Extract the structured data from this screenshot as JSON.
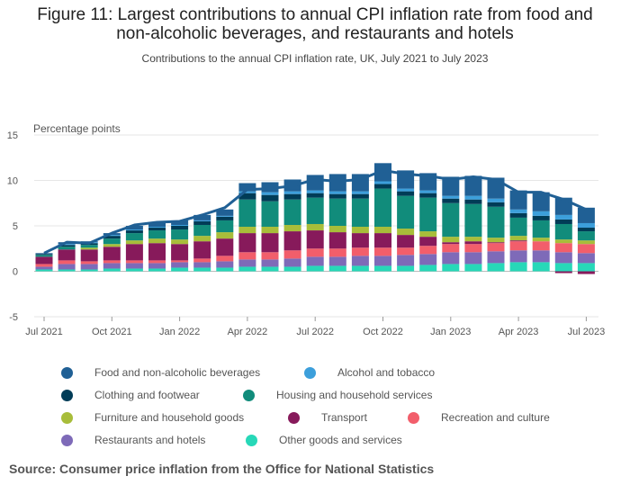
{
  "header": {
    "title_line1": "Figure 11: Largest contributions to annual CPI inflation rate from food and",
    "title_line2": "non-alcoholic beverages, and restaurants and hotels",
    "subtitle": "Contributions to the annual CPI inflation rate, UK, July 2021 to July 2023"
  },
  "source": "Source: Consumer price inflation from the Office for National Statistics",
  "chart_data": {
    "type": "bar",
    "stacked": true,
    "ylabel": "Percentage points",
    "ylim": [
      -5,
      15
    ],
    "yticks": [
      "15",
      "10",
      "5",
      "0",
      "-5"
    ],
    "grid": true,
    "legend_position": "bottom",
    "categories": [
      "Jul 2021",
      "Aug 2021",
      "Sep 2021",
      "Oct 2021",
      "Nov 2021",
      "Dec 2021",
      "Jan 2022",
      "Feb 2022",
      "Mar 2022",
      "Apr 2022",
      "May 2022",
      "Jun 2022",
      "Jul 2022",
      "Aug 2022",
      "Sep 2022",
      "Oct 2022",
      "Nov 2022",
      "Dec 2022",
      "Jan 2023",
      "Feb 2023",
      "Mar 2023",
      "Apr 2023",
      "May 2023",
      "Jun 2023",
      "Jul 2023"
    ],
    "xtick_labels": [
      {
        "index": 0,
        "label": "Jul 2021"
      },
      {
        "index": 3,
        "label": "Oct 2021"
      },
      {
        "index": 6,
        "label": "Jan 2022"
      },
      {
        "index": 9,
        "label": "Apr 2022"
      },
      {
        "index": 12,
        "label": "Jul 2022"
      },
      {
        "index": 15,
        "label": "Oct 2022"
      },
      {
        "index": 18,
        "label": "Jan 2023"
      },
      {
        "index": 21,
        "label": "Apr 2023"
      },
      {
        "index": 24,
        "label": "Jul 2023"
      }
    ],
    "series": [
      {
        "name": "Other goods and services",
        "color": "#27d8b8",
        "values": [
          0.2,
          0.2,
          0.2,
          0.3,
          0.3,
          0.3,
          0.4,
          0.4,
          0.4,
          0.5,
          0.5,
          0.5,
          0.6,
          0.6,
          0.6,
          0.6,
          0.6,
          0.7,
          0.8,
          0.8,
          0.9,
          1.0,
          1.0,
          0.9,
          0.9
        ]
      },
      {
        "name": "Restaurants and hotels",
        "color": "#7e6ab8",
        "values": [
          0.3,
          0.6,
          0.6,
          0.6,
          0.6,
          0.6,
          0.6,
          0.6,
          0.7,
          0.8,
          0.8,
          0.9,
          1.0,
          1.0,
          1.1,
          1.1,
          1.2,
          1.2,
          1.3,
          1.3,
          1.3,
          1.3,
          1.3,
          1.2,
          1.1
        ]
      },
      {
        "name": "Recreation and culture",
        "color": "#f25e6b",
        "values": [
          0.3,
          0.4,
          0.3,
          0.3,
          0.3,
          0.3,
          0.2,
          0.4,
          0.6,
          0.8,
          0.8,
          0.9,
          0.9,
          0.9,
          0.9,
          0.9,
          0.8,
          0.9,
          0.9,
          0.9,
          0.9,
          1.0,
          1.0,
          1.0,
          1.0
        ]
      },
      {
        "name": "Transport",
        "color": "#871a5b",
        "values": [
          0.8,
          1.2,
          1.3,
          1.5,
          1.8,
          1.9,
          1.8,
          1.9,
          1.9,
          2.1,
          2.1,
          2.1,
          2.0,
          1.8,
          1.6,
          1.6,
          1.4,
          1.0,
          0.2,
          0.3,
          0.1,
          0.1,
          0.0,
          -0.2,
          -0.3
        ]
      },
      {
        "name": "Furniture and household goods",
        "color": "#a8bd3a",
        "values": [
          0.0,
          0.0,
          0.2,
          0.3,
          0.4,
          0.5,
          0.5,
          0.6,
          0.7,
          0.7,
          0.7,
          0.7,
          0.7,
          0.7,
          0.7,
          0.7,
          0.7,
          0.6,
          0.6,
          0.5,
          0.5,
          0.5,
          0.4,
          0.4,
          0.4
        ]
      },
      {
        "name": "Housing and household services",
        "color": "#118c7b",
        "values": [
          0.2,
          0.3,
          0.3,
          0.6,
          0.8,
          0.9,
          1.1,
          1.2,
          1.3,
          3.0,
          2.8,
          2.8,
          2.9,
          3.0,
          3.1,
          4.2,
          3.6,
          3.7,
          3.7,
          3.6,
          3.4,
          2.0,
          1.9,
          1.7,
          1.0
        ]
      },
      {
        "name": "Clothing and footwear",
        "color": "#003c57",
        "values": [
          0.1,
          0.2,
          0.2,
          0.3,
          0.3,
          0.3,
          0.4,
          0.4,
          0.4,
          0.7,
          0.7,
          0.6,
          0.5,
          0.5,
          0.5,
          0.5,
          0.5,
          0.5,
          0.5,
          0.5,
          0.5,
          0.5,
          0.5,
          0.5,
          0.4
        ]
      },
      {
        "name": "Alcohol and tobacco",
        "color": "#3c9fdb",
        "values": [
          0.0,
          0.1,
          0.1,
          0.1,
          0.1,
          0.1,
          0.1,
          0.1,
          0.1,
          0.2,
          0.3,
          0.3,
          0.3,
          0.3,
          0.3,
          0.3,
          0.3,
          0.3,
          0.3,
          0.4,
          0.4,
          0.4,
          0.5,
          0.5,
          0.5
        ]
      },
      {
        "name": "Food and non-alcoholic beverages",
        "color": "#206095",
        "values": [
          0.1,
          0.2,
          0.1,
          0.2,
          0.4,
          0.5,
          0.5,
          0.6,
          0.7,
          0.9,
          1.1,
          1.3,
          1.7,
          1.9,
          1.9,
          2.0,
          2.0,
          1.9,
          2.1,
          2.2,
          2.3,
          2.1,
          2.1,
          1.9,
          1.7
        ]
      }
    ],
    "total": {
      "name": "CPI annual rate",
      "color": "#206095",
      "values": [
        2.0,
        3.2,
        3.1,
        4.2,
        5.1,
        5.4,
        5.5,
        6.2,
        7.0,
        9.0,
        9.1,
        9.4,
        10.1,
        9.9,
        10.1,
        11.1,
        10.7,
        10.5,
        10.1,
        10.4,
        10.1,
        8.7,
        8.7,
        7.9,
        6.8
      ]
    },
    "legend_order": [
      "Food and non-alcoholic beverages",
      "Alcohol and tobacco",
      "Clothing and footwear",
      "Housing and household services",
      "Furniture and household goods",
      "Transport",
      "Recreation and culture",
      "Restaurants and hotels",
      "Other goods and services"
    ]
  }
}
